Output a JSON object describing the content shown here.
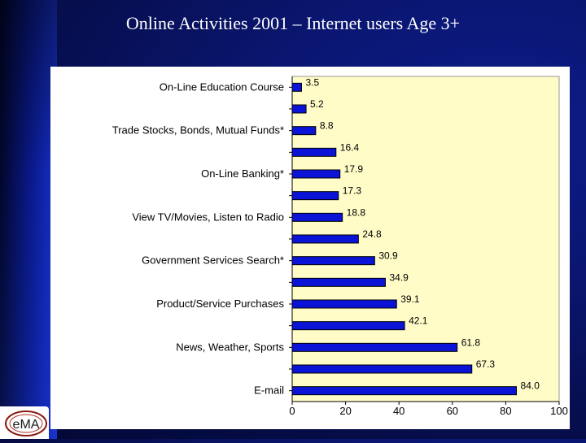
{
  "slide": {
    "title": "Online Activities 2001 – Internet users Age 3+",
    "logo_text": "eMA"
  },
  "colors": {
    "bar": "#0b13d6",
    "bar_stroke": "#000000",
    "plot_bg": "#fffcc8",
    "title": "#ffffff"
  },
  "chart_data": {
    "type": "bar",
    "orientation": "horizontal",
    "title": "",
    "xlabel": "",
    "ylabel": "",
    "xlim": [
      0,
      100
    ],
    "xticks": [
      0,
      20,
      40,
      60,
      80,
      100
    ],
    "grid": false,
    "categories": [
      "On-Line Education Course",
      "",
      "Trade Stocks, Bonds, Mutual Funds*",
      "",
      "On-Line Banking*",
      "",
      "View TV/Movies, Listen to Radio",
      "",
      "Government Services Search*",
      "",
      "Product/Service Purchases",
      "",
      "News, Weather, Sports",
      "",
      "E-mail"
    ],
    "values": [
      3.5,
      5.2,
      8.8,
      16.4,
      17.9,
      17.3,
      18.8,
      24.8,
      30.9,
      34.9,
      39.1,
      42.1,
      61.8,
      67.3,
      84.0
    ],
    "value_labels": [
      "3.5",
      "5.2",
      "8.8",
      "16.4",
      "17.9",
      "17.3",
      "18.8",
      "24.8",
      "30.9",
      "34.9",
      "39.1",
      "42.1",
      "61.8",
      "67.3",
      "84.0"
    ]
  }
}
